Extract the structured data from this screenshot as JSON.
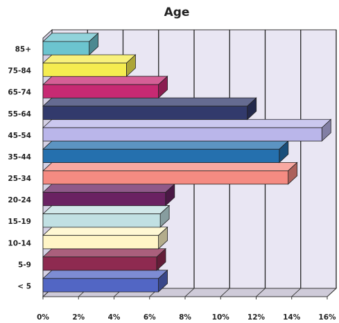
{
  "chart_data": {
    "type": "bar",
    "orientation": "horizontal",
    "title": "Age",
    "xlabel": "",
    "ylabel": "",
    "categories": [
      "< 5",
      "5-9",
      "10-14",
      "15-19",
      "20-24",
      "25-34",
      "35-44",
      "45-54",
      "55-64",
      "65-74",
      "75-84",
      "85+"
    ],
    "values": [
      6.5,
      6.4,
      6.5,
      6.6,
      6.9,
      13.8,
      13.3,
      15.7,
      11.5,
      6.5,
      4.7,
      2.6
    ],
    "colors": [
      "#5266c4",
      "#8e2a50",
      "#fff5c6",
      "#c1e0e3",
      "#6a2262",
      "#f58b82",
      "#2570ae",
      "#bab6ea",
      "#323a6c",
      "#c72a73",
      "#f5ec50",
      "#6cc4cf"
    ],
    "x_ticks": [
      "0%",
      "2%",
      "4%",
      "6%",
      "8%",
      "10%",
      "12%",
      "14%",
      "16%"
    ],
    "xlim": [
      0,
      16
    ],
    "grid": true,
    "style": "3d",
    "wall_color": "#e9e6f3"
  }
}
